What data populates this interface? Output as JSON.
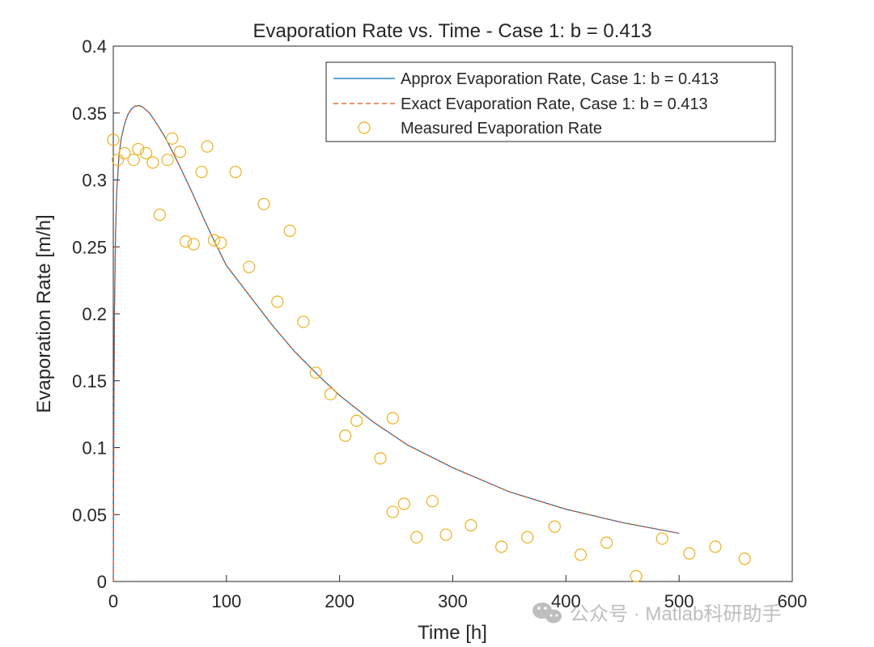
{
  "chart_data": {
    "type": "line",
    "title": "Evaporation Rate vs. Time - Case 1: b = 0.413",
    "xlabel": "Time [h]",
    "ylabel": "Evaporation Rate [m/h]",
    "xlim": [
      0,
      600
    ],
    "ylim": [
      0,
      0.4
    ],
    "xticks": [
      0,
      100,
      200,
      300,
      400,
      500,
      600
    ],
    "xtick_labels": [
      "0",
      "100",
      "200",
      "300",
      "400",
      "500",
      "600"
    ],
    "yticks": [
      0,
      0.05,
      0.1,
      0.15,
      0.2,
      0.25,
      0.3,
      0.35,
      0.4
    ],
    "ytick_labels": [
      "0",
      "0.05",
      "0.1",
      "0.15",
      "0.2",
      "0.25",
      "0.3",
      "0.35",
      "0.4"
    ],
    "grid": false,
    "legend_position": "top-right",
    "series": [
      {
        "name": "Approx Evaporation Rate, Case 1: b = 0.413",
        "kind": "line",
        "style": "solid",
        "color": "#0072BD",
        "x": [
          0,
          0.5,
          1,
          2,
          3,
          5,
          7,
          10,
          13,
          16,
          19,
          22,
          25,
          28,
          32,
          36,
          40,
          45,
          50,
          60,
          70,
          80,
          90,
          100,
          120,
          140,
          160,
          180,
          200,
          230,
          260,
          300,
          350,
          400,
          450,
          500
        ],
        "y": [
          0,
          0.12,
          0.2,
          0.26,
          0.29,
          0.318,
          0.331,
          0.342,
          0.349,
          0.353,
          0.355,
          0.3555,
          0.355,
          0.353,
          0.35,
          0.345,
          0.34,
          0.333,
          0.325,
          0.308,
          0.29,
          0.271,
          0.253,
          0.236,
          0.214,
          0.192,
          0.172,
          0.155,
          0.139,
          0.119,
          0.102,
          0.085,
          0.067,
          0.054,
          0.044,
          0.036
        ]
      },
      {
        "name": "Exact Evaporation Rate, Case 1: b = 0.413",
        "kind": "line",
        "style": "dashed",
        "color": "#D95319",
        "x": [
          0,
          0.5,
          1,
          2,
          3,
          5,
          7,
          10,
          13,
          16,
          19,
          22,
          25,
          28,
          32,
          36,
          40,
          45,
          50,
          60,
          70,
          80,
          90,
          100,
          120,
          140,
          160,
          180,
          200,
          230,
          260,
          300,
          350,
          400,
          450,
          500
        ],
        "y": [
          0,
          0.12,
          0.2,
          0.26,
          0.29,
          0.318,
          0.331,
          0.342,
          0.349,
          0.353,
          0.355,
          0.3555,
          0.355,
          0.353,
          0.35,
          0.345,
          0.34,
          0.333,
          0.325,
          0.308,
          0.29,
          0.271,
          0.253,
          0.236,
          0.214,
          0.192,
          0.172,
          0.155,
          0.139,
          0.119,
          0.102,
          0.085,
          0.067,
          0.054,
          0.044,
          0.036
        ]
      },
      {
        "name": "Measured Evaporation Rate",
        "kind": "scatter",
        "marker": "circle",
        "color": "#EDB120",
        "x": [
          0,
          4,
          10,
          18,
          22,
          29,
          35,
          41,
          48,
          52,
          59,
          64,
          71,
          78,
          83,
          89,
          95,
          108,
          120,
          133,
          145,
          156,
          168,
          179,
          192,
          205,
          215,
          236,
          247,
          247,
          257,
          268,
          282,
          294,
          316,
          343,
          366,
          390,
          413,
          436,
          462,
          485,
          509,
          532,
          558
        ],
        "y": [
          0.33,
          0.315,
          0.32,
          0.315,
          0.323,
          0.32,
          0.313,
          0.274,
          0.315,
          0.331,
          0.321,
          0.254,
          0.252,
          0.306,
          0.325,
          0.255,
          0.253,
          0.306,
          0.235,
          0.282,
          0.209,
          0.262,
          0.194,
          0.156,
          0.14,
          0.109,
          0.12,
          0.092,
          0.122,
          0.052,
          0.058,
          0.033,
          0.06,
          0.035,
          0.042,
          0.026,
          0.033,
          0.041,
          0.02,
          0.029,
          0.004,
          0.032,
          0.021,
          0.026,
          0.017
        ]
      }
    ]
  },
  "watermark": {
    "text": "公众号 · Matlab科研助手"
  }
}
